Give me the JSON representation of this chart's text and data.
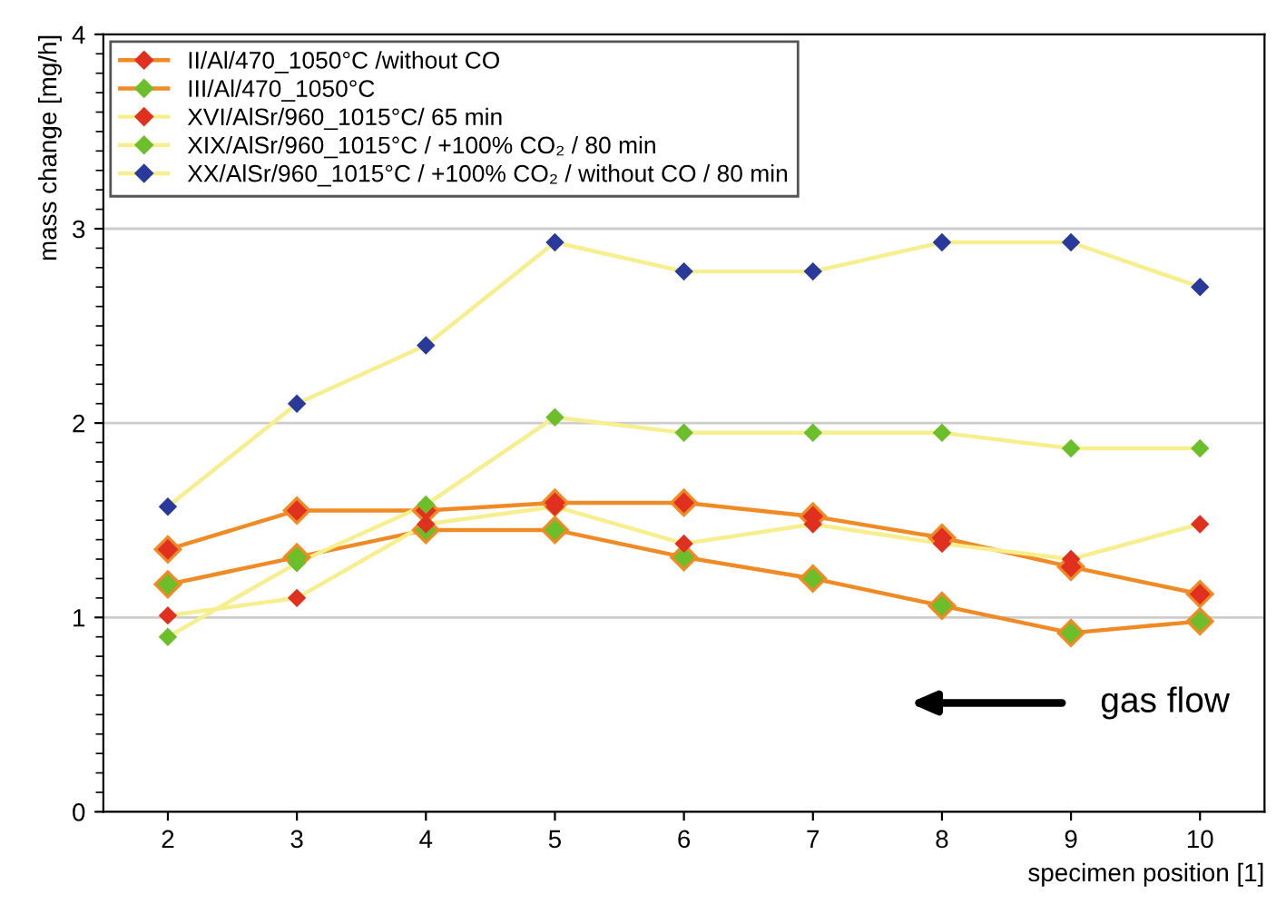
{
  "chart_data": {
    "type": "line",
    "xlabel": "specimen position [1]",
    "ylabel": "mass change [mg/h]",
    "x": [
      2,
      3,
      4,
      5,
      6,
      7,
      8,
      9,
      10
    ],
    "series": [
      {
        "name": "II/Al/470_1050°C /without CO",
        "color": "#f08a24",
        "colors": [
          "#e03020",
          "#e03020",
          "#e03020",
          "#e03020",
          "#e03020",
          "#e03020",
          "#e03020",
          "#e03020",
          "#e03020"
        ],
        "values": [
          1.35,
          1.55,
          1.55,
          1.59,
          1.59,
          1.52,
          1.41,
          1.26,
          1.12
        ]
      },
      {
        "name": "III/Al/470_1050°C",
        "color": "#f08a24",
        "colors": [
          "#6cbf2a",
          "#6cbf2a",
          "#6cbf2a",
          "#6cbf2a",
          "#6cbf2a",
          "#6cbf2a",
          "#6cbf2a",
          "#6cbf2a",
          "#6cbf2a"
        ],
        "values": [
          1.17,
          1.31,
          1.45,
          1.45,
          1.31,
          1.2,
          1.06,
          0.92,
          0.98
        ]
      },
      {
        "name": "XVI/AlSr/960_1015°C/ 65 min",
        "color": "#f7ee8e",
        "colors": [
          "#e03020",
          "#e03020",
          "#e03020",
          "#e03020",
          "#e03020",
          "#e03020",
          "#e03020",
          "#e03020",
          "#e03020"
        ],
        "values": [
          1.01,
          1.1,
          1.48,
          1.57,
          1.38,
          1.48,
          1.38,
          1.3,
          1.48
        ]
      },
      {
        "name": "XIX/AlSr/960_1015°C / +100% CO₂ / 80 min",
        "color": "#f7ee8e",
        "colors": [
          "#6cbf2a",
          "#6cbf2a",
          "#6cbf2a",
          "#6cbf2a",
          "#6cbf2a",
          "#6cbf2a",
          "#6cbf2a",
          "#6cbf2a",
          "#6cbf2a"
        ],
        "values": [
          0.9,
          1.28,
          1.58,
          2.03,
          1.95,
          1.95,
          1.95,
          1.87,
          1.87
        ]
      },
      {
        "name": "XX/AlSr/960_1015°C / +100% CO₂ / without CO / 80 min",
        "color": "#f7ee8e",
        "colors": [
          "#2a3a9a",
          "#2a3a9a",
          "#2a3a9a",
          "#2a3a9a",
          "#2a3a9a",
          "#2a3a9a",
          "#2a3a9a",
          "#2a3a9a",
          "#2a3a9a"
        ],
        "values": [
          1.57,
          2.1,
          2.4,
          2.93,
          2.78,
          2.78,
          2.93,
          2.93,
          2.7
        ]
      }
    ],
    "xlim": [
      1.5,
      10.5
    ],
    "ylim": [
      0,
      4
    ],
    "xticks": [
      2,
      3,
      4,
      5,
      6,
      7,
      8,
      9,
      10
    ],
    "yticks": [
      0,
      1,
      2,
      3,
      4
    ],
    "grid": "y",
    "legend": "top left",
    "marker": "diamond",
    "line_style": "solid",
    "annotations": [
      "gas flow"
    ]
  }
}
